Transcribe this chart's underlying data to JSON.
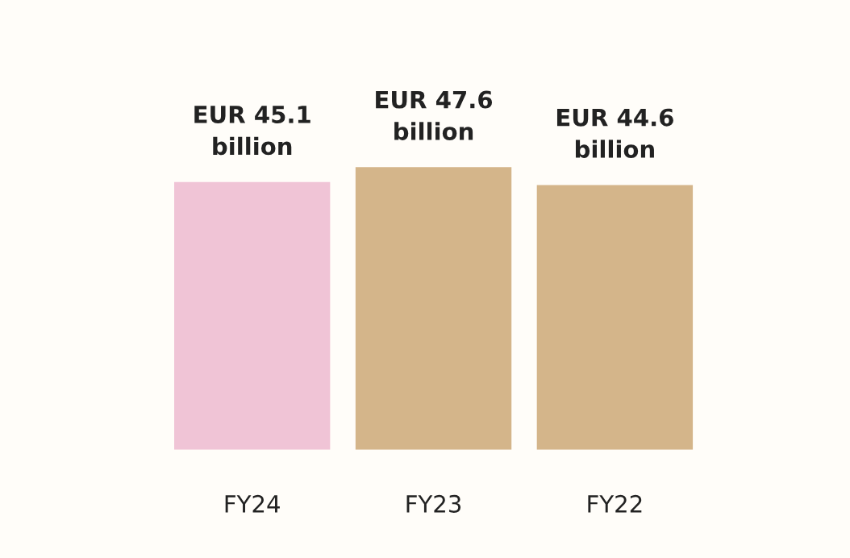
{
  "chart_data": {
    "type": "bar",
    "categories": [
      "FY24",
      "FY23",
      "FY22"
    ],
    "values": [
      45.1,
      47.6,
      44.6
    ],
    "colors": [
      "#f0c4d6",
      "#d4b58a",
      "#d4b58a"
    ],
    "value_labels": [
      "EUR 45.1\nbillion",
      "EUR 47.6\nbillion",
      "EUR 44.6\nbillion"
    ],
    "tick_labels": "x",
    "grid": false,
    "legend": false
  }
}
